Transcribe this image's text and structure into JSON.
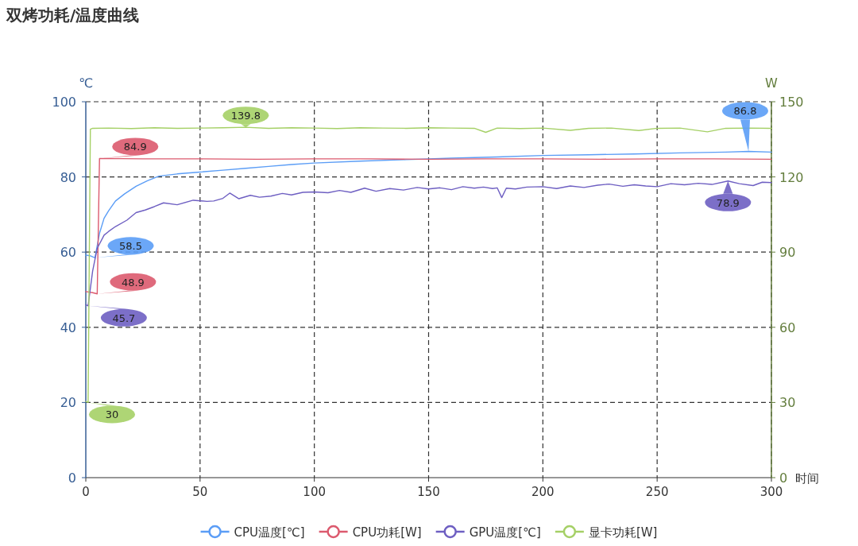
{
  "chart_data": {
    "type": "line",
    "title": "双烤功耗/温度曲线",
    "xlabel": "时间",
    "ylabel": "℃",
    "y2label": "W",
    "xlim": [
      0,
      300
    ],
    "xticks": [
      0,
      50,
      100,
      150,
      200,
      250,
      300
    ],
    "ylim": [
      0,
      100
    ],
    "yticks": [
      0,
      20,
      40,
      60,
      80,
      100
    ],
    "y2lim": [
      0,
      150
    ],
    "y2ticks": [
      0,
      30,
      60,
      90,
      120,
      150
    ],
    "grid": true,
    "legend": "bottom",
    "series": [
      {
        "name": "CPU温度[℃]",
        "color": "#5b9df6",
        "axis": "y",
        "x": [
          0,
          2,
          4,
          6,
          8,
          10,
          13,
          17,
          22,
          27,
          32,
          40,
          50,
          60,
          70,
          80,
          90,
          100,
          120,
          140,
          160,
          180,
          200,
          220,
          240,
          260,
          280,
          290,
          300
        ],
        "values": [
          59.2,
          59.0,
          58.5,
          65,
          69,
          71,
          73.6,
          75.5,
          77.5,
          79,
          80.2,
          80.8,
          81.3,
          81.8,
          82.3,
          82.8,
          83.3,
          83.7,
          84.2,
          84.6,
          85.0,
          85.3,
          85.7,
          85.9,
          86.1,
          86.4,
          86.6,
          86.8,
          86.6
        ],
        "value_labels": [
          null,
          null,
          "58.5",
          null,
          null,
          null,
          null,
          null,
          null,
          null,
          null,
          null,
          null,
          null,
          null,
          null,
          null,
          null,
          null,
          null,
          null,
          null,
          null,
          null,
          null,
          null,
          null,
          "86.8",
          null
        ]
      },
      {
        "name": "CPU功耗[W]",
        "color": "#dc5a6e",
        "axis": "y",
        "x": [
          0,
          3,
          5,
          6,
          25,
          50,
          75,
          100,
          125,
          150,
          175,
          200,
          225,
          250,
          275,
          300
        ],
        "values": [
          49.5,
          49.2,
          48.9,
          84.9,
          84.8,
          84.8,
          84.7,
          84.8,
          84.8,
          84.7,
          84.8,
          84.8,
          84.7,
          84.8,
          84.8,
          84.7
        ],
        "value_labels": [
          null,
          null,
          "48.9",
          "84.9",
          null,
          null,
          null,
          null,
          null,
          null,
          null,
          null,
          null,
          null,
          null,
          null
        ]
      },
      {
        "name": "GPU温度[℃]",
        "color": "#6e5fc2",
        "axis": "y",
        "x": [
          0,
          1,
          3,
          5,
          8,
          10,
          13,
          18,
          22,
          26,
          30,
          34,
          40,
          47,
          53,
          56,
          60,
          63,
          67,
          72,
          76,
          81,
          86,
          90,
          95,
          100,
          106,
          111,
          116,
          122,
          127,
          133,
          139,
          145,
          150,
          155,
          160,
          165,
          170,
          174,
          178,
          180,
          182,
          184,
          188,
          193,
          200,
          206,
          212,
          218,
          224,
          229,
          235,
          240,
          245,
          250,
          256,
          262,
          268,
          274,
          281,
          286,
          292,
          296,
          300
        ],
        "values": [
          46.0,
          45.7,
          55,
          61,
          64.5,
          65.5,
          66.8,
          68.5,
          70.5,
          71.2,
          72.1,
          73.1,
          72.6,
          73.8,
          73.5,
          73.6,
          74.3,
          75.7,
          74.2,
          75.1,
          74.6,
          74.9,
          75.6,
          75.2,
          75.9,
          76.0,
          75.8,
          76.4,
          75.9,
          77.0,
          76.2,
          76.9,
          76.5,
          77.2,
          76.8,
          77.1,
          76.6,
          77.4,
          77.0,
          77.3,
          76.9,
          77.1,
          74.5,
          77.0,
          76.8,
          77.3,
          77.4,
          76.9,
          77.6,
          77.2,
          77.8,
          78.1,
          77.5,
          77.9,
          77.6,
          77.4,
          78.2,
          77.9,
          78.3,
          78.0,
          78.9,
          78.2,
          77.7,
          78.6,
          78.5
        ],
        "value_labels": [
          null,
          "45.7",
          null,
          null,
          null,
          null,
          null,
          null,
          null,
          null,
          null,
          null,
          null,
          null,
          null,
          null,
          null,
          null,
          null,
          null,
          null,
          null,
          null,
          null,
          null,
          null,
          null,
          null,
          null,
          null,
          null,
          null,
          null,
          null,
          null,
          null,
          null,
          null,
          null,
          null,
          null,
          null,
          null,
          null,
          null,
          null,
          null,
          null,
          null,
          null,
          null,
          null,
          null,
          null,
          null,
          null,
          null,
          null,
          null,
          null,
          "78.9",
          null,
          null,
          null,
          null
        ]
      },
      {
        "name": "显卡功耗[W]",
        "color": "#a5d066",
        "axis": "y2",
        "x": [
          0,
          1,
          2,
          3,
          10,
          20,
          30,
          40,
          50,
          60,
          70,
          80,
          90,
          100,
          110,
          120,
          130,
          140,
          150,
          160,
          170,
          175,
          180,
          190,
          200,
          212,
          220,
          230,
          242,
          250,
          260,
          272,
          280,
          290,
          300
        ],
        "values": [
          30.4,
          30,
          139.0,
          139.4,
          139.5,
          139.3,
          139.6,
          139.4,
          139.5,
          139.6,
          139.8,
          139.4,
          139.6,
          139.5,
          139.3,
          139.6,
          139.5,
          139.4,
          139.6,
          139.5,
          139.4,
          137.8,
          139.5,
          139.3,
          139.5,
          138.6,
          139.4,
          139.5,
          138.5,
          139.4,
          139.5,
          138.0,
          139.4,
          139.5,
          139.4
        ],
        "value_labels": [
          null,
          "30",
          null,
          null,
          null,
          null,
          null,
          null,
          null,
          null,
          "139.8",
          null,
          null,
          null,
          null,
          null,
          null,
          null,
          null,
          null,
          null,
          null,
          null,
          null,
          null,
          null,
          null,
          null,
          null,
          null,
          null,
          null,
          null,
          null,
          null
        ]
      }
    ]
  }
}
